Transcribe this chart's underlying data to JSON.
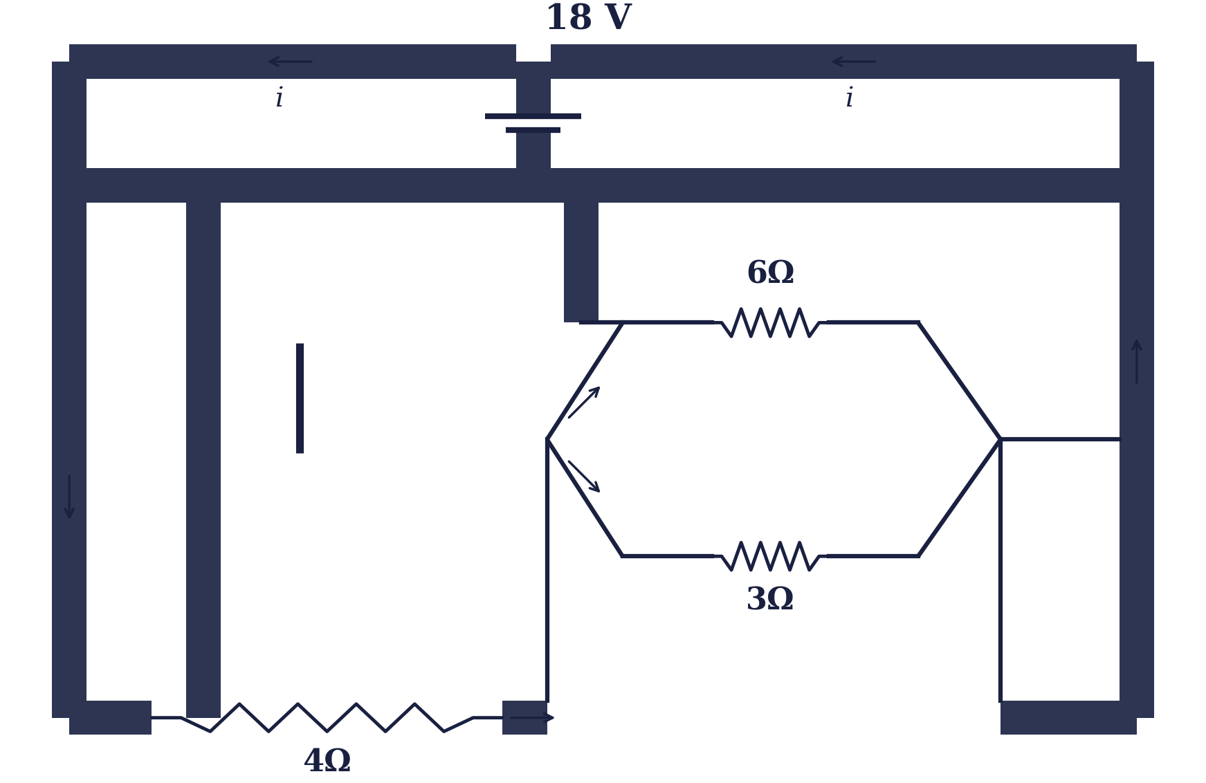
{
  "bg_color": "#ffffff",
  "fill_color": "#2d3553",
  "line_color": "#1a2040",
  "wire_color": "#1a1a2e",
  "lw": 4.5,
  "battery_voltage": "18 V",
  "R1_label": "4Ω",
  "R2_label": "6Ω",
  "R3_label": "3Ω",
  "font_size_label": 32,
  "font_size_voltage": 36,
  "font_size_i": 28,
  "thick": 55,
  "fig_w": 17.43,
  "fig_h": 11.32,
  "dpi": 100
}
